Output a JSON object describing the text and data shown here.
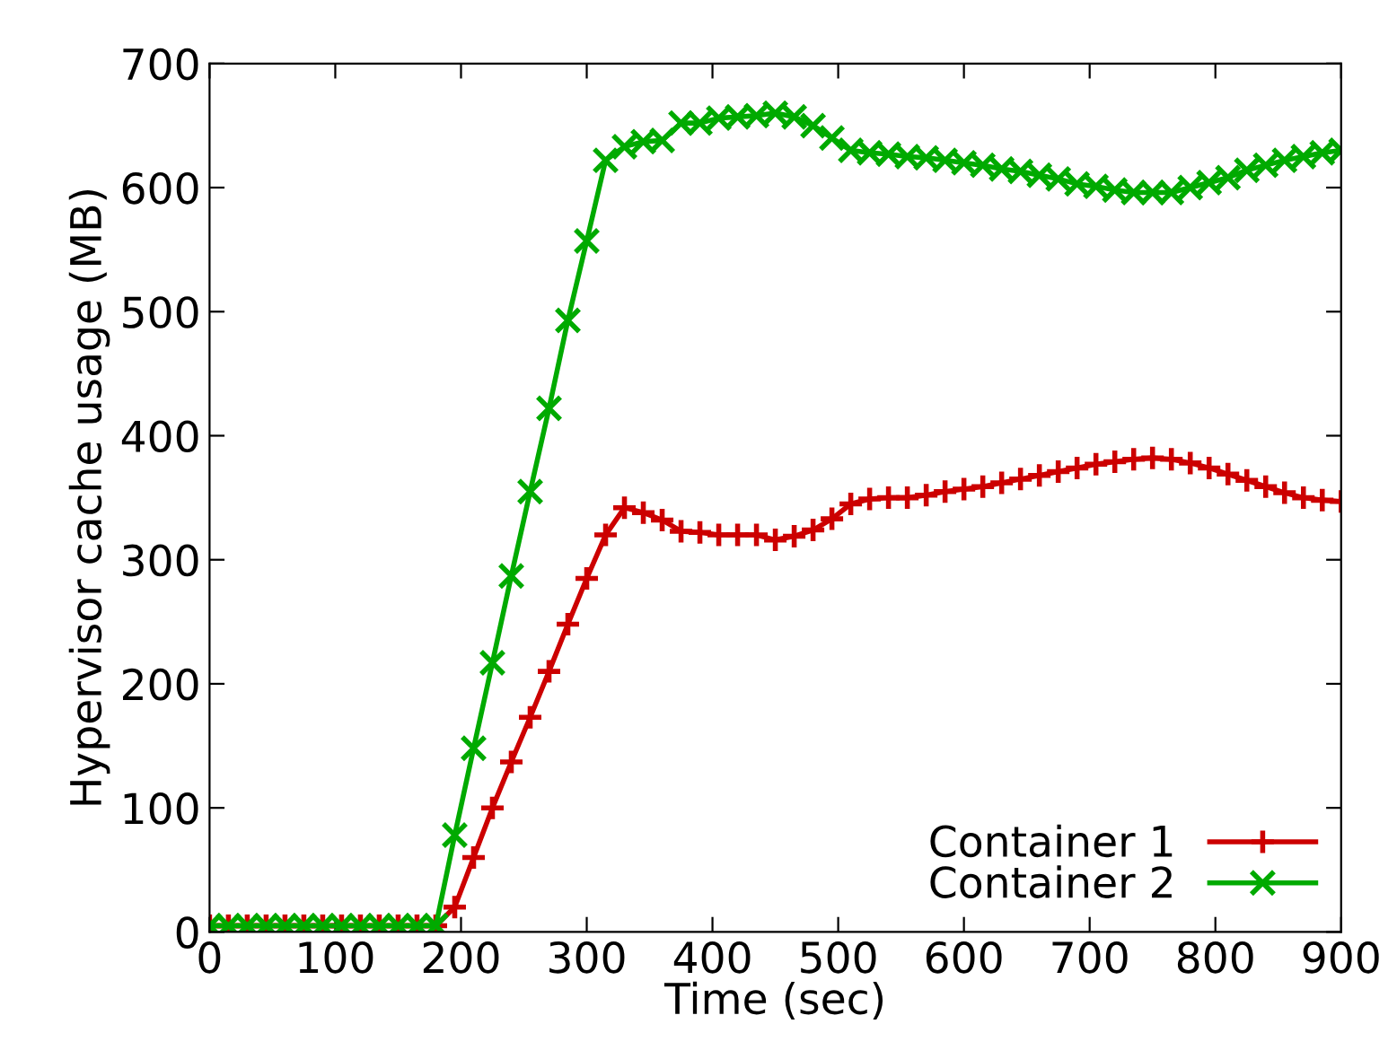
{
  "chart_data": {
    "type": "line",
    "xlabel": "Time (sec)",
    "ylabel": "Hypervisor cache usage (MB)",
    "x": [
      0,
      15,
      30,
      45,
      60,
      75,
      90,
      105,
      120,
      135,
      150,
      165,
      180,
      195,
      210,
      225,
      240,
      255,
      270,
      285,
      300,
      315,
      330,
      345,
      360,
      375,
      390,
      405,
      420,
      435,
      450,
      465,
      480,
      495,
      510,
      525,
      540,
      555,
      570,
      585,
      600,
      615,
      630,
      645,
      660,
      675,
      690,
      705,
      720,
      735,
      750,
      765,
      780,
      795,
      810,
      825,
      840,
      855,
      870,
      885,
      900
    ],
    "series": [
      {
        "name": "Container 1",
        "color": "#cc0000",
        "marker": "plus",
        "values": [
          5,
          5,
          5,
          5,
          5,
          5,
          5,
          5,
          5,
          5,
          5,
          5,
          5,
          20,
          60,
          100,
          137,
          173,
          210,
          248,
          285,
          320,
          342,
          338,
          332,
          323,
          322,
          320,
          320,
          320,
          316,
          319,
          324,
          333,
          345,
          349,
          350,
          350,
          352,
          355,
          357,
          359,
          362,
          365,
          368,
          371,
          374,
          377,
          379,
          381,
          382,
          381,
          378,
          374,
          369,
          364,
          359,
          354,
          350,
          348,
          347
        ]
      },
      {
        "name": "Container 2",
        "color": "#00aa00",
        "marker": "cross",
        "values": [
          5,
          5,
          5,
          5,
          5,
          5,
          5,
          5,
          5,
          5,
          5,
          5,
          5,
          78,
          148,
          217,
          287,
          355,
          422,
          493,
          557,
          622,
          633,
          637,
          638,
          652,
          652,
          656,
          657,
          658,
          660,
          657,
          650,
          640,
          630,
          628,
          627,
          625,
          624,
          622,
          620,
          618,
          615,
          613,
          610,
          607,
          603,
          601,
          598,
          596,
          596,
          596,
          600,
          604,
          608,
          614,
          618,
          622,
          625,
          628,
          630
        ]
      }
    ],
    "xlim": [
      0,
      900
    ],
    "xticks": [
      0,
      100,
      200,
      300,
      400,
      500,
      600,
      700,
      800,
      900
    ],
    "ylim": [
      0,
      700
    ],
    "yticks": [
      0,
      100,
      200,
      300,
      400,
      500,
      600,
      700
    ],
    "grid": false,
    "legend": "bottom right",
    "line_style": "solid"
  }
}
